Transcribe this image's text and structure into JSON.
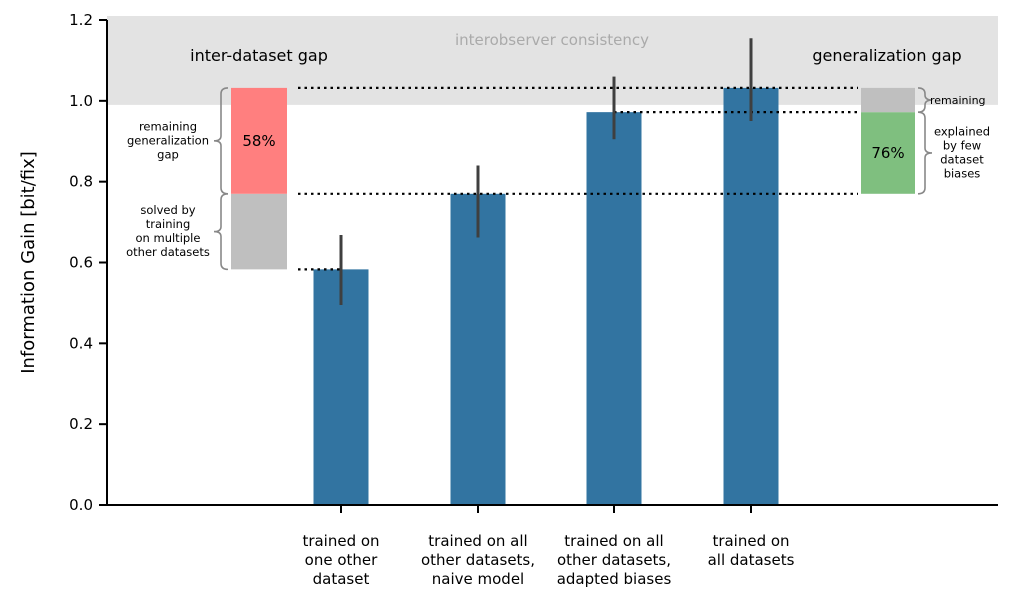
{
  "chart_data": {
    "type": "bar",
    "title": "",
    "ylabel": "Information Gain [bit/fix]",
    "xlabel": "",
    "ylim": [
      0,
      1.2
    ],
    "yticks": [
      "0.0",
      "0.2",
      "0.4",
      "0.6",
      "0.8",
      "1.0",
      "1.2"
    ],
    "categories": [
      [
        "trained on",
        "one other",
        "dataset"
      ],
      [
        "trained on all",
        "other datasets,",
        "naive model"
      ],
      [
        "trained on all",
        "other datasets,",
        "adapted biases"
      ],
      [
        "trained on",
        "all datasets"
      ]
    ],
    "values": [
      0.583,
      0.77,
      0.972,
      1.032
    ],
    "error_low": [
      0.495,
      0.662,
      0.905,
      0.95
    ],
    "error_high": [
      0.668,
      0.84,
      1.06,
      1.155
    ],
    "bar_color": "#3274a1",
    "interobserver_band": {
      "label": "interobserver consistency",
      "y_low": 0.99,
      "y_high": 1.2,
      "color": "#e3e3e3"
    },
    "inter_dataset_gap": {
      "title": "inter-dataset gap",
      "solved_low": 0.583,
      "solved_high": 0.77,
      "remaining_low": 0.77,
      "remaining_high": 1.032,
      "remaining_percent": "58%",
      "remaining_label": [
        "remaining",
        "generalization",
        "gap"
      ],
      "solved_label": [
        "solved by",
        "training",
        "on multiple",
        "other datasets"
      ],
      "remaining_color": "#ff7f7f",
      "solved_color": "#bfbfbf"
    },
    "generalization_gap": {
      "title": "generalization gap",
      "explained_low": 0.77,
      "explained_high": 0.972,
      "remaining_low": 0.972,
      "remaining_high": 1.032,
      "explained_percent": "76%",
      "explained_label": [
        "explained",
        "by few",
        "dataset",
        "biases"
      ],
      "remaining_label": "remaining",
      "explained_color": "#7fbf7f",
      "remaining_color": "#bfbfbf"
    }
  }
}
